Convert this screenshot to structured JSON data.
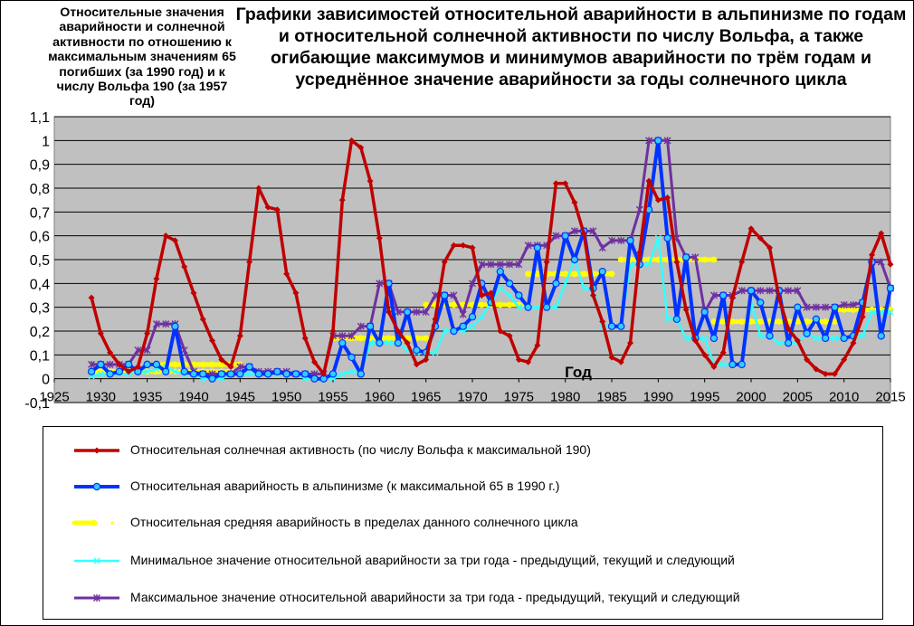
{
  "title": "Графики зависимостей относительной аварийности в альпинизме по годам и относительной солнечной активности по числу Вольфа, а также огибающие максимумов и минимумов аварийности по трём годам и усреднённое значение аварийности за годы солнечного цикла",
  "y_axis_label": "Относительные значения аварийности и солнечной активности по отношению к максимальным значениям 65 погибших (за 1990 год) и к числу Вольфа 190 (за 1957 год)",
  "chart_data": {
    "type": "line",
    "title": "Графики зависимостей относительной аварийности в альпинизме по годам и относительной солнечной активности по числу Вольфа, а также огибающие максимумов и минимумов аварийности по трём годам и усреднённое значение аварийности за годы солнечного цикла",
    "xlabel": "Год",
    "ylabel": "Относительные значения аварийности и солнечной активности по отношению к максимальным значениям 65 погибших (за 1990 год) и к числу Вольфа 190 (за 1957 год)",
    "xlim": [
      1925,
      2015
    ],
    "ylim": [
      -0.1,
      1.1
    ],
    "xticks": [
      "1925",
      "1930",
      "1935",
      "1940",
      "1945",
      "1950",
      "1955",
      "1960",
      "1965",
      "1970",
      "1975",
      "1980",
      "1985",
      "1990",
      "1995",
      "2000",
      "2005",
      "2010",
      "2015"
    ],
    "yticks": [
      "-0,1",
      "0",
      "0,1",
      "0,2",
      "0,3",
      "0,4",
      "0,5",
      "0,6",
      "0,7",
      "0,8",
      "0,9",
      "1",
      "1,1"
    ],
    "grid": true,
    "legend_position": "bottom",
    "plot_background": "#c0c0c0",
    "series": [
      {
        "name": "Относительная солнечная активность (по числу Вольфа к максимальной 190)",
        "color": "#c00000",
        "marker": "diamond",
        "x": [
          1929,
          1930,
          1931,
          1932,
          1933,
          1934,
          1935,
          1936,
          1937,
          1938,
          1939,
          1940,
          1941,
          1942,
          1943,
          1944,
          1945,
          1946,
          1947,
          1948,
          1949,
          1950,
          1951,
          1952,
          1953,
          1954,
          1955,
          1956,
          1957,
          1958,
          1959,
          1960,
          1961,
          1962,
          1963,
          1964,
          1965,
          1966,
          1967,
          1968,
          1969,
          1970,
          1971,
          1972,
          1973,
          1974,
          1975,
          1976,
          1977,
          1978,
          1979,
          1980,
          1981,
          1982,
          1983,
          1984,
          1985,
          1986,
          1987,
          1988,
          1989,
          1990,
          1991,
          1992,
          1993,
          1994,
          1995,
          1996,
          1997,
          1998,
          1999,
          2000,
          2001,
          2002,
          2003,
          2004,
          2005,
          2006,
          2007,
          2008,
          2009,
          2010,
          2011,
          2012,
          2013,
          2014,
          2015
        ],
        "y": [
          0.34,
          0.19,
          0.11,
          0.06,
          0.03,
          0.05,
          0.19,
          0.42,
          0.6,
          0.58,
          0.47,
          0.36,
          0.25,
          0.16,
          0.08,
          0.05,
          0.18,
          0.49,
          0.8,
          0.72,
          0.71,
          0.44,
          0.36,
          0.17,
          0.07,
          0.02,
          0.2,
          0.75,
          1.0,
          0.97,
          0.83,
          0.59,
          0.28,
          0.2,
          0.15,
          0.06,
          0.08,
          0.25,
          0.49,
          0.56,
          0.56,
          0.55,
          0.35,
          0.36,
          0.2,
          0.18,
          0.08,
          0.07,
          0.14,
          0.49,
          0.82,
          0.82,
          0.74,
          0.61,
          0.35,
          0.24,
          0.09,
          0.07,
          0.15,
          0.53,
          0.83,
          0.75,
          0.76,
          0.49,
          0.29,
          0.16,
          0.1,
          0.05,
          0.11,
          0.34,
          0.49,
          0.63,
          0.59,
          0.55,
          0.34,
          0.21,
          0.16,
          0.08,
          0.04,
          0.02,
          0.02,
          0.08,
          0.15,
          0.26,
          0.52,
          0.61,
          0.48
        ]
      },
      {
        "name": "Относительная аварийность в альпинизме (к максимальной 65 в 1990 г.)",
        "color": "#0033ff",
        "marker": "circle",
        "x": [
          1929,
          1930,
          1931,
          1932,
          1933,
          1934,
          1935,
          1936,
          1937,
          1938,
          1939,
          1940,
          1941,
          1942,
          1943,
          1944,
          1945,
          1946,
          1947,
          1948,
          1949,
          1950,
          1951,
          1952,
          1953,
          1954,
          1955,
          1956,
          1957,
          1958,
          1959,
          1960,
          1961,
          1962,
          1963,
          1964,
          1965,
          1966,
          1967,
          1968,
          1969,
          1970,
          1971,
          1972,
          1973,
          1974,
          1975,
          1976,
          1977,
          1978,
          1979,
          1980,
          1981,
          1982,
          1983,
          1984,
          1985,
          1986,
          1987,
          1988,
          1989,
          1990,
          1991,
          1992,
          1993,
          1994,
          1995,
          1996,
          1997,
          1998,
          1999,
          2000,
          2001,
          2002,
          2003,
          2004,
          2005,
          2006,
          2007,
          2008,
          2009,
          2010,
          2011,
          2012,
          2013,
          2014,
          2015
        ],
        "y": [
          0.03,
          0.06,
          0.02,
          0.03,
          0.06,
          0.03,
          0.06,
          0.06,
          0.03,
          0.22,
          0.03,
          0.02,
          0.02,
          0.0,
          0.02,
          0.02,
          0.02,
          0.05,
          0.02,
          0.02,
          0.03,
          0.02,
          0.02,
          0.02,
          0.0,
          0.0,
          0.02,
          0.15,
          0.09,
          0.02,
          0.22,
          0.15,
          0.4,
          0.15,
          0.28,
          0.12,
          0.11,
          0.22,
          0.35,
          0.2,
          0.22,
          0.26,
          0.4,
          0.32,
          0.45,
          0.4,
          0.35,
          0.3,
          0.55,
          0.3,
          0.4,
          0.6,
          0.5,
          0.62,
          0.38,
          0.45,
          0.22,
          0.22,
          0.58,
          0.48,
          0.71,
          1.0,
          0.59,
          0.25,
          0.51,
          0.17,
          0.28,
          0.17,
          0.35,
          0.06,
          0.06,
          0.37,
          0.32,
          0.18,
          0.37,
          0.15,
          0.3,
          0.19,
          0.25,
          0.17,
          0.3,
          0.17,
          0.18,
          0.32,
          0.49,
          0.18,
          0.38
        ]
      },
      {
        "name": "Относительная средняя аварийность в пределах данного солнечного цикла",
        "color": "#ffff00",
        "marker": "circle",
        "segments": [
          {
            "x": [
              1929,
              1944
            ],
            "y": 0.03
          },
          {
            "x": [
              1935,
              1945
            ],
            "y": 0.06
          },
          {
            "x": [
              1955,
              1965
            ],
            "y": 0.17
          },
          {
            "x": [
              1965,
              1976
            ],
            "y": 0.31
          },
          {
            "x": [
              1976,
              1985
            ],
            "y": 0.44
          },
          {
            "x": [
              1986,
              1996
            ],
            "y": 0.5
          },
          {
            "x": [
              1996,
              2009
            ],
            "y": 0.24
          },
          {
            "x": [
              2009,
              2015
            ],
            "y": 0.29
          }
        ]
      },
      {
        "name": "Минимальное значение относительной аварийности за три года - предыдущий, текущий и следующий",
        "color": "#33ffff",
        "marker": "x",
        "x": [
          1929,
          1930,
          1931,
          1932,
          1933,
          1934,
          1935,
          1936,
          1937,
          1938,
          1939,
          1940,
          1941,
          1942,
          1943,
          1944,
          1945,
          1946,
          1947,
          1948,
          1949,
          1950,
          1951,
          1952,
          1953,
          1954,
          1955,
          1956,
          1957,
          1958,
          1959,
          1960,
          1961,
          1962,
          1963,
          1964,
          1965,
          1966,
          1967,
          1968,
          1969,
          1970,
          1971,
          1972,
          1973,
          1974,
          1975,
          1976,
          1977,
          1978,
          1979,
          1980,
          1981,
          1982,
          1983,
          1984,
          1985,
          1986,
          1987,
          1988,
          1989,
          1990,
          1991,
          1992,
          1993,
          1994,
          1995,
          1996,
          1997,
          1998,
          1999,
          2000,
          2001,
          2002,
          2003,
          2004,
          2005,
          2006,
          2007,
          2008,
          2009,
          2010,
          2011,
          2012,
          2013,
          2014,
          2015
        ],
        "y": [
          0.01,
          0.02,
          0.02,
          0.02,
          0.02,
          0.03,
          0.03,
          0.04,
          0.05,
          0.03,
          0.02,
          0.02,
          0.0,
          0.0,
          0.0,
          0.02,
          0.02,
          0.02,
          0.02,
          0.02,
          0.02,
          0.02,
          0.02,
          0.0,
          0.0,
          0.0,
          0.0,
          0.02,
          0.03,
          0.03,
          0.15,
          0.15,
          0.15,
          0.15,
          0.12,
          0.11,
          0.11,
          0.11,
          0.2,
          0.2,
          0.2,
          0.22,
          0.26,
          0.32,
          0.38,
          0.35,
          0.3,
          0.3,
          0.3,
          0.3,
          0.3,
          0.4,
          0.5,
          0.38,
          0.38,
          0.22,
          0.22,
          0.22,
          0.48,
          0.48,
          0.48,
          0.59,
          0.25,
          0.25,
          0.17,
          0.17,
          0.17,
          0.06,
          0.06,
          0.06,
          0.06,
          0.32,
          0.18,
          0.18,
          0.15,
          0.15,
          0.15,
          0.19,
          0.17,
          0.17,
          0.17,
          0.17,
          0.18,
          0.18,
          0.28,
          0.28,
          0.28
        ]
      },
      {
        "name": "Максимальное значение относительной аварийности за три года - предыдущий, текущий и следующий",
        "color": "#7030a0",
        "marker": "star",
        "x": [
          1929,
          1930,
          1931,
          1932,
          1933,
          1934,
          1935,
          1936,
          1937,
          1938,
          1939,
          1940,
          1941,
          1942,
          1943,
          1944,
          1945,
          1946,
          1947,
          1948,
          1949,
          1950,
          1951,
          1952,
          1953,
          1954,
          1955,
          1956,
          1957,
          1958,
          1959,
          1960,
          1961,
          1962,
          1963,
          1964,
          1965,
          1966,
          1967,
          1968,
          1969,
          1970,
          1971,
          1972,
          1973,
          1974,
          1975,
          1976,
          1977,
          1978,
          1979,
          1980,
          1981,
          1982,
          1983,
          1984,
          1985,
          1986,
          1987,
          1988,
          1989,
          1990,
          1991,
          1992,
          1993,
          1994,
          1995,
          1996,
          1997,
          1998,
          1999,
          2000,
          2001,
          2002,
          2003,
          2004,
          2005,
          2006,
          2007,
          2008,
          2009,
          2010,
          2011,
          2012,
          2013,
          2014,
          2015
        ],
        "y": [
          0.06,
          0.06,
          0.06,
          0.06,
          0.06,
          0.12,
          0.12,
          0.23,
          0.23,
          0.23,
          0.12,
          0.03,
          0.02,
          0.02,
          0.02,
          0.02,
          0.05,
          0.05,
          0.03,
          0.03,
          0.03,
          0.03,
          0.02,
          0.02,
          0.02,
          0.02,
          0.18,
          0.18,
          0.18,
          0.22,
          0.22,
          0.4,
          0.4,
          0.28,
          0.28,
          0.28,
          0.28,
          0.35,
          0.35,
          0.35,
          0.27,
          0.4,
          0.48,
          0.48,
          0.48,
          0.48,
          0.48,
          0.56,
          0.56,
          0.56,
          0.6,
          0.6,
          0.62,
          0.62,
          0.62,
          0.55,
          0.58,
          0.58,
          0.58,
          0.71,
          1.0,
          1.0,
          1.0,
          0.59,
          0.51,
          0.51,
          0.28,
          0.35,
          0.35,
          0.35,
          0.37,
          0.37,
          0.37,
          0.37,
          0.37,
          0.37,
          0.37,
          0.3,
          0.3,
          0.3,
          0.3,
          0.31,
          0.31,
          0.32,
          0.49,
          0.49,
          0.38
        ]
      }
    ]
  }
}
